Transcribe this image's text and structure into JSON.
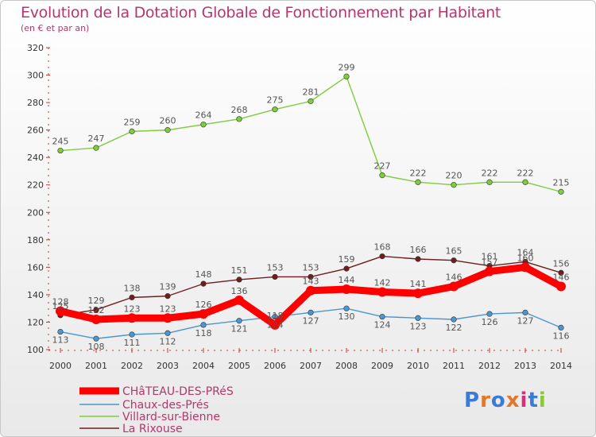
{
  "chart_data": {
    "type": "line",
    "title": "Evolution de la Dotation Globale de Fonctionnement par Habitant",
    "subtitle": "(en € et par an)",
    "xlabel": "",
    "ylabel": "",
    "ylim": [
      100,
      320
    ],
    "yticks": [
      100,
      120,
      140,
      160,
      180,
      200,
      220,
      240,
      260,
      280,
      300,
      320
    ],
    "categories": [
      "2000",
      "2001",
      "2002",
      "2003",
      "2004",
      "2005",
      "2006",
      "2007",
      "2008",
      "2009",
      "2010",
      "2011",
      "2012",
      "2013",
      "2014"
    ],
    "series": [
      {
        "name": "CHâTEAU-DES-PRéS",
        "color": "#ff0000",
        "values": [
          128,
          122,
          123,
          123,
          126,
          136,
          118,
          143,
          144,
          142,
          141,
          146,
          157,
          160,
          146
        ],
        "labels": [
          "128",
          "122",
          "123",
          "123",
          "126",
          "136",
          "118",
          "143",
          "144",
          "142",
          "141",
          "146",
          "157",
          "160",
          "146"
        ]
      },
      {
        "name": "Chaux-des-Prés",
        "color": "#4b96cf",
        "values": [
          113,
          108,
          111,
          112,
          118,
          121,
          124,
          127,
          130,
          124,
          123,
          122,
          126,
          127,
          116
        ],
        "labels": [
          "113",
          "108",
          "111",
          "112",
          "118",
          "121",
          "124",
          "127",
          "130",
          "124",
          "123",
          "122",
          "126",
          "127",
          "116"
        ]
      },
      {
        "name": "Villard-sur-Bienne",
        "color": "#7fcc3c",
        "values": [
          245,
          247,
          259,
          260,
          264,
          268,
          275,
          281,
          299,
          227,
          222,
          220,
          222,
          222,
          215
        ],
        "labels": [
          "245",
          "247",
          "259",
          "260",
          "264",
          "268",
          "275",
          "281",
          "299",
          "227",
          "222",
          "220",
          "222",
          "222",
          "215"
        ]
      },
      {
        "name": "La Rixouse",
        "color": "#6e1e1e",
        "values": [
          125,
          129,
          138,
          139,
          148,
          151,
          153,
          153,
          159,
          168,
          166,
          165,
          161,
          164,
          156
        ],
        "labels": [
          "125",
          "129",
          "138",
          "139",
          "148",
          "151",
          "153",
          "153",
          "159",
          "168",
          "166",
          "165",
          "161",
          "164",
          "156"
        ]
      }
    ],
    "legend_position": "bottom-left",
    "grid": false
  },
  "logo": {
    "text": "Proxiti",
    "colors": [
      "#3a7bd5",
      "#e2762a",
      "#3a7bd5",
      "#e2762a",
      "#d62f7a",
      "#3a7bd5",
      "#8dc63f"
    ]
  }
}
